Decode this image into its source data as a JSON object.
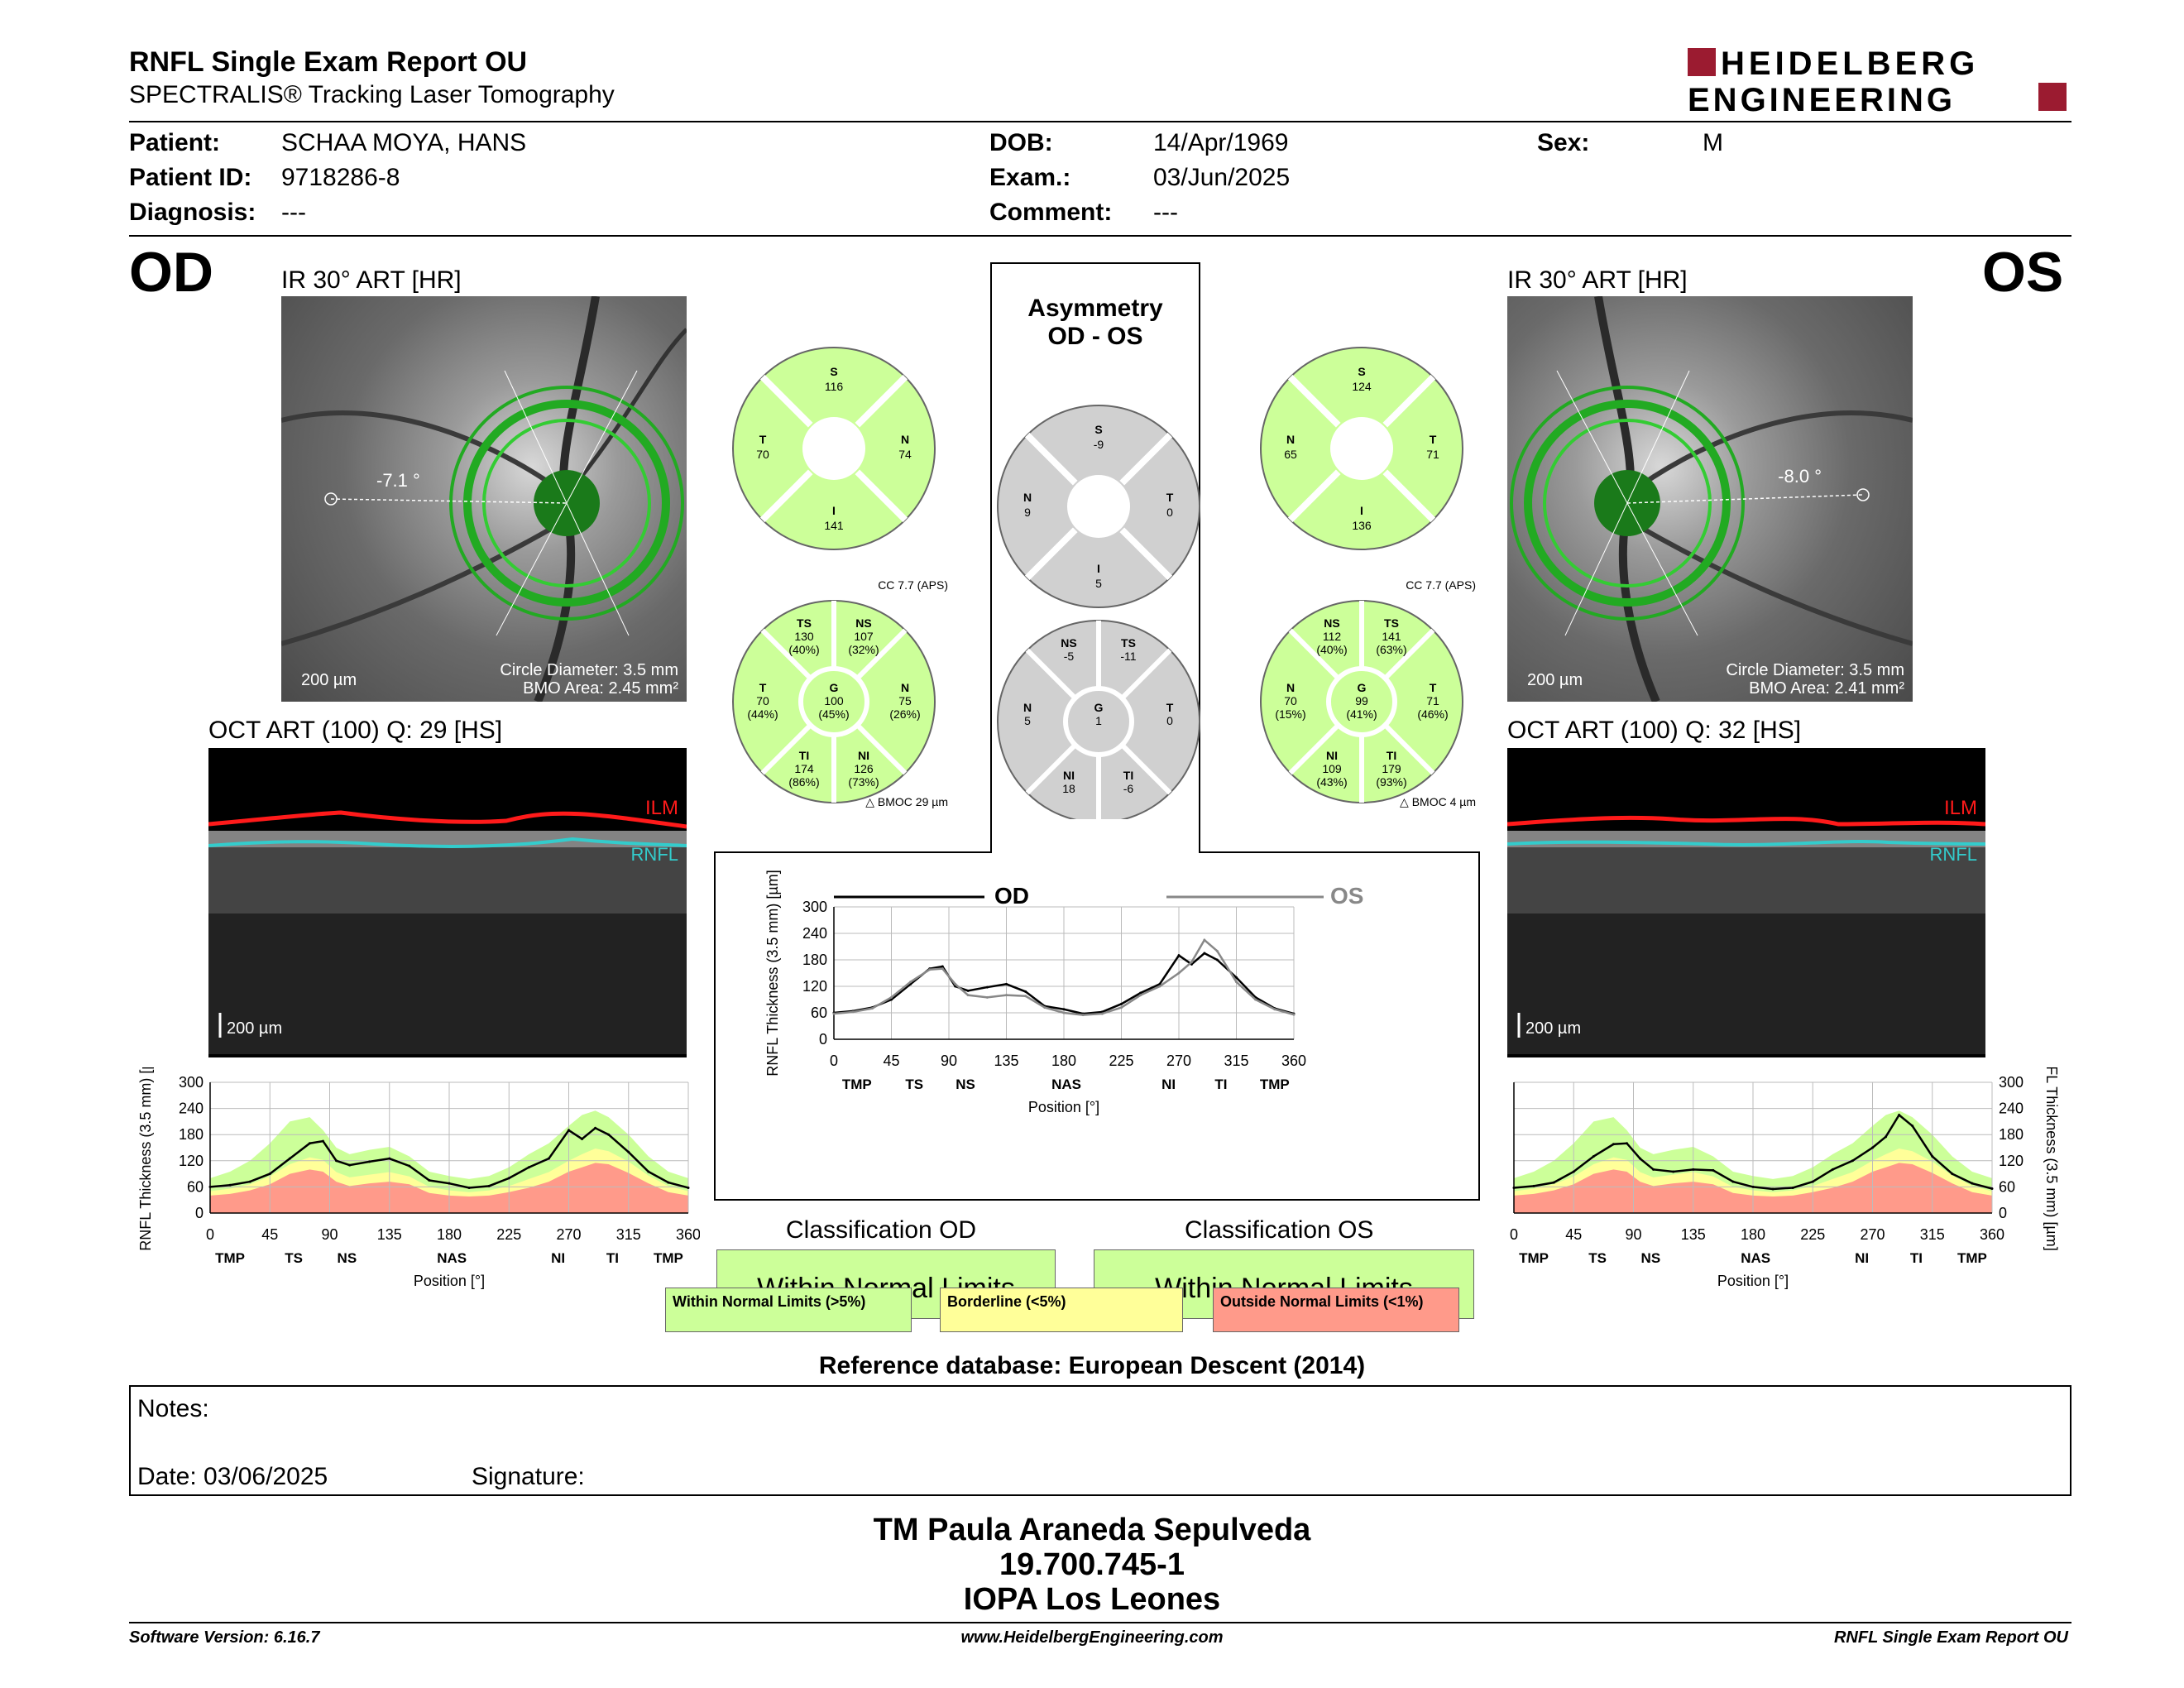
{
  "header": {
    "title": "RNFL Single Exam Report OU",
    "subtitle": "SPECTRALIS® Tracking Laser Tomography",
    "logo_line1": "HEIDELBERG",
    "logo_line2": "ENGINEERING"
  },
  "patient": {
    "patient_label": "Patient:",
    "patient_value": "SCHAA MOYA, HANS",
    "id_label": "Patient ID:",
    "id_value": "9718286-8",
    "diagnosis_label": "Diagnosis:",
    "diagnosis_value": "---",
    "dob_label": "DOB:",
    "dob_value": "14/Apr/1969",
    "exam_label": "Exam.:",
    "exam_value": "03/Jun/2025",
    "comment_label": "Comment:",
    "comment_value": "---",
    "sex_label": "Sex:",
    "sex_value": "M"
  },
  "od": {
    "eye": "OD",
    "ir_caption": "IR 30° ART [HR]",
    "angle": "-7.1 °",
    "scale": "200 µm",
    "circle_diameter": "Circle Diameter: 3.5 mm",
    "bmo_area": "BMO Area: 2.45 mm²",
    "oct_caption": "OCT ART (100) Q: 29 [HS]",
    "ilm": "ILM",
    "rnfl": "RNFL",
    "oct_scale": "200 µm",
    "bmoc": "BMOC 29 µm",
    "cc": "CC 7.7 (APS)"
  },
  "os": {
    "eye": "OS",
    "ir_caption": "IR 30° ART [HR]",
    "angle": "-8.0 °",
    "scale": "200 µm",
    "circle_diameter": "Circle Diameter: 3.5 mm",
    "bmo_area": "BMO Area: 2.41 mm²",
    "oct_caption": "OCT ART (100) Q: 32 [HS]",
    "ilm": "ILM",
    "rnfl": "RNFL",
    "oct_scale": "200 µm",
    "bmoc": "BMOC 4 µm",
    "cc": "CC 7.7 (APS)"
  },
  "asymmetry": {
    "title_line1": "Asymmetry",
    "title_line2": "OD - OS"
  },
  "quadrants": {
    "od": {
      "S": "116",
      "N": "74",
      "I": "141",
      "T": "70"
    },
    "os": {
      "S": "124",
      "N": "65",
      "I": "136",
      "T": "71"
    },
    "asym": {
      "S": "-9",
      "N": "9",
      "I": "5",
      "T": "0"
    }
  },
  "sectors": {
    "od": {
      "TS": [
        "130",
        "(40%)"
      ],
      "NS": [
        "107",
        "(32%)"
      ],
      "N": [
        "75",
        "(26%)"
      ],
      "NI": [
        "126",
        "(73%)"
      ],
      "TI": [
        "174",
        "(86%)"
      ],
      "T": [
        "70",
        "(44%)"
      ],
      "G": [
        "100",
        "(45%)"
      ]
    },
    "os": {
      "NS": [
        "112",
        "(40%)"
      ],
      "TS": [
        "141",
        "(63%)"
      ],
      "T": [
        "71",
        "(46%)"
      ],
      "TI": [
        "179",
        "(93%)"
      ],
      "NI": [
        "109",
        "(43%)"
      ],
      "N": [
        "70",
        "(15%)"
      ],
      "G": [
        "99",
        "(41%)"
      ]
    },
    "asym": {
      "NS": [
        "-5"
      ],
      "TS": [
        "-11"
      ],
      "T": [
        "0"
      ],
      "TI": [
        "-6"
      ],
      "NI": [
        "18"
      ],
      "N": [
        "5"
      ],
      "G": [
        "1"
      ]
    }
  },
  "colors": {
    "normal": "#ccff99",
    "borderline": "#ffff99",
    "outside": "#ff9a8a",
    "gray_sector": "#d0d0d0",
    "logo_red": "#9b1b30",
    "ilm_red": "#ff1a1a",
    "rnfl_cyan": "#33cccc"
  },
  "center_chart": {
    "legend_od": "OD",
    "legend_os": "OS"
  },
  "classification": {
    "od_title": "Classification OD",
    "os_title": "Classification OS",
    "od_result": "Within Normal Limits",
    "os_result": "Within Normal Limits",
    "legend_normal": "Within Normal Limits (>5%)",
    "legend_borderline": "Borderline (<5%)",
    "legend_outside": "Outside Normal Limits (<1%)"
  },
  "reference": "Reference database: European Descent (2014)",
  "notes": {
    "label": "Notes:",
    "date": "Date: 03/06/2025",
    "signature": "Signature:"
  },
  "signature_block": {
    "line1": "TM Paula Araneda Sepulveda",
    "line2": "19.700.745-1",
    "line3": "IOPA Los Leones"
  },
  "footer": {
    "version": "Software Version: 6.16.7",
    "website": "www.HeidelbergEngineering.com",
    "report": "RNFL Single Exam Report OU"
  },
  "chart_data": [
    {
      "type": "line",
      "id": "od_profile",
      "ylabel": "RNFL Thickness (3.5 mm) [µm]",
      "xlabel": "Position [°]",
      "xlim": [
        0,
        360
      ],
      "ylim": [
        0,
        300
      ],
      "xticks": [
        0,
        45,
        90,
        135,
        180,
        225,
        270,
        315,
        360
      ],
      "yticks": [
        0,
        60,
        120,
        180,
        240,
        300
      ],
      "sectors": [
        "TMP",
        "TS",
        "NS",
        "NAS",
        "NI",
        "TI",
        "TMP"
      ],
      "sector_positions": [
        15,
        63,
        103,
        182,
        262,
        303,
        345
      ],
      "x": [
        0,
        15,
        30,
        45,
        60,
        75,
        85,
        95,
        105,
        120,
        135,
        150,
        165,
        180,
        195,
        210,
        225,
        240,
        255,
        270,
        280,
        290,
        300,
        315,
        330,
        345,
        360
      ],
      "series": [
        {
          "values": [
            60,
            64,
            72,
            90,
            125,
            160,
            165,
            120,
            110,
            118,
            125,
            108,
            75,
            68,
            58,
            62,
            80,
            105,
            125,
            190,
            170,
            195,
            180,
            140,
            95,
            70,
            58
          ]
        }
      ],
      "bands": {
        "outside_upper": [
          40,
          44,
          52,
          66,
          90,
          100,
          95,
          72,
          62,
          68,
          72,
          66,
          46,
          40,
          38,
          40,
          48,
          58,
          72,
          95,
          105,
          115,
          112,
          92,
          68,
          48,
          40
        ],
        "borderline_upper": [
          50,
          56,
          66,
          84,
          112,
          128,
          122,
          94,
          82,
          88,
          94,
          84,
          60,
          52,
          48,
          52,
          62,
          78,
          94,
          120,
          135,
          148,
          142,
          118,
          86,
          62,
          50
        ],
        "normal_upper": [
          80,
          95,
          120,
          160,
          210,
          220,
          190,
          150,
          135,
          145,
          152,
          130,
          95,
          85,
          78,
          85,
          105,
          135,
          160,
          200,
          225,
          235,
          220,
          180,
          130,
          95,
          80
        ]
      }
    },
    {
      "type": "line",
      "id": "os_profile",
      "ylabel": "RNFL Thickness (3.5 mm) [µm]",
      "xlabel": "Position [°]",
      "xlim": [
        0,
        360
      ],
      "ylim": [
        0,
        300
      ],
      "xticks": [
        0,
        45,
        90,
        135,
        180,
        225,
        270,
        315,
        360
      ],
      "yticks": [
        0,
        60,
        120,
        180,
        240,
        300
      ],
      "sectors": [
        "TMP",
        "TS",
        "NS",
        "NAS",
        "NI",
        "TI",
        "TMP"
      ],
      "sector_positions": [
        15,
        63,
        103,
        182,
        262,
        303,
        345
      ],
      "x": [
        0,
        15,
        30,
        45,
        60,
        75,
        85,
        95,
        105,
        120,
        135,
        150,
        165,
        180,
        195,
        210,
        225,
        240,
        255,
        270,
        280,
        290,
        300,
        315,
        330,
        345,
        360
      ],
      "series": [
        {
          "values": [
            58,
            62,
            70,
            95,
            130,
            158,
            160,
            125,
            100,
            95,
            100,
            98,
            72,
            60,
            55,
            58,
            72,
            100,
            120,
            150,
            175,
            225,
            200,
            130,
            90,
            68,
            56
          ]
        }
      ],
      "bands": {
        "outside_upper": [
          40,
          44,
          52,
          66,
          90,
          100,
          95,
          72,
          62,
          68,
          72,
          66,
          46,
          40,
          38,
          40,
          48,
          58,
          72,
          95,
          105,
          115,
          112,
          92,
          68,
          48,
          40
        ],
        "borderline_upper": [
          50,
          56,
          66,
          84,
          112,
          128,
          122,
          94,
          82,
          88,
          94,
          84,
          60,
          52,
          48,
          52,
          62,
          78,
          94,
          120,
          135,
          148,
          142,
          118,
          86,
          62,
          50
        ],
        "normal_upper": [
          80,
          95,
          120,
          160,
          210,
          220,
          190,
          150,
          135,
          145,
          152,
          130,
          95,
          85,
          78,
          85,
          105,
          135,
          160,
          200,
          225,
          235,
          220,
          180,
          130,
          95,
          80
        ]
      }
    },
    {
      "type": "line",
      "id": "asym_profile",
      "ylabel": "RNFL Thickness (3.5 mm) [µm]",
      "xlabel": "Position [°]",
      "xlim": [
        0,
        360
      ],
      "ylim": [
        0,
        300
      ],
      "xticks": [
        0,
        45,
        90,
        135,
        180,
        225,
        270,
        315,
        360
      ],
      "yticks": [
        0,
        60,
        120,
        180,
        240,
        300
      ],
      "sectors": [
        "TMP",
        "TS",
        "NS",
        "NAS",
        "NI",
        "TI",
        "TMP"
      ],
      "sector_positions": [
        18,
        63,
        103,
        182,
        262,
        303,
        345
      ],
      "x": [
        0,
        15,
        30,
        45,
        60,
        75,
        85,
        95,
        105,
        120,
        135,
        150,
        165,
        180,
        195,
        210,
        225,
        240,
        255,
        270,
        280,
        290,
        300,
        315,
        330,
        345,
        360
      ],
      "series": [
        {
          "name": "OD",
          "values": [
            60,
            64,
            72,
            90,
            125,
            160,
            165,
            120,
            110,
            118,
            125,
            108,
            75,
            68,
            58,
            62,
            80,
            105,
            125,
            190,
            170,
            195,
            180,
            140,
            95,
            70,
            58
          ]
        },
        {
          "name": "OS",
          "values": [
            58,
            62,
            70,
            95,
            130,
            158,
            160,
            125,
            100,
            95,
            100,
            98,
            72,
            60,
            55,
            58,
            72,
            100,
            120,
            150,
            175,
            225,
            200,
            130,
            90,
            68,
            56
          ]
        }
      ]
    }
  ]
}
